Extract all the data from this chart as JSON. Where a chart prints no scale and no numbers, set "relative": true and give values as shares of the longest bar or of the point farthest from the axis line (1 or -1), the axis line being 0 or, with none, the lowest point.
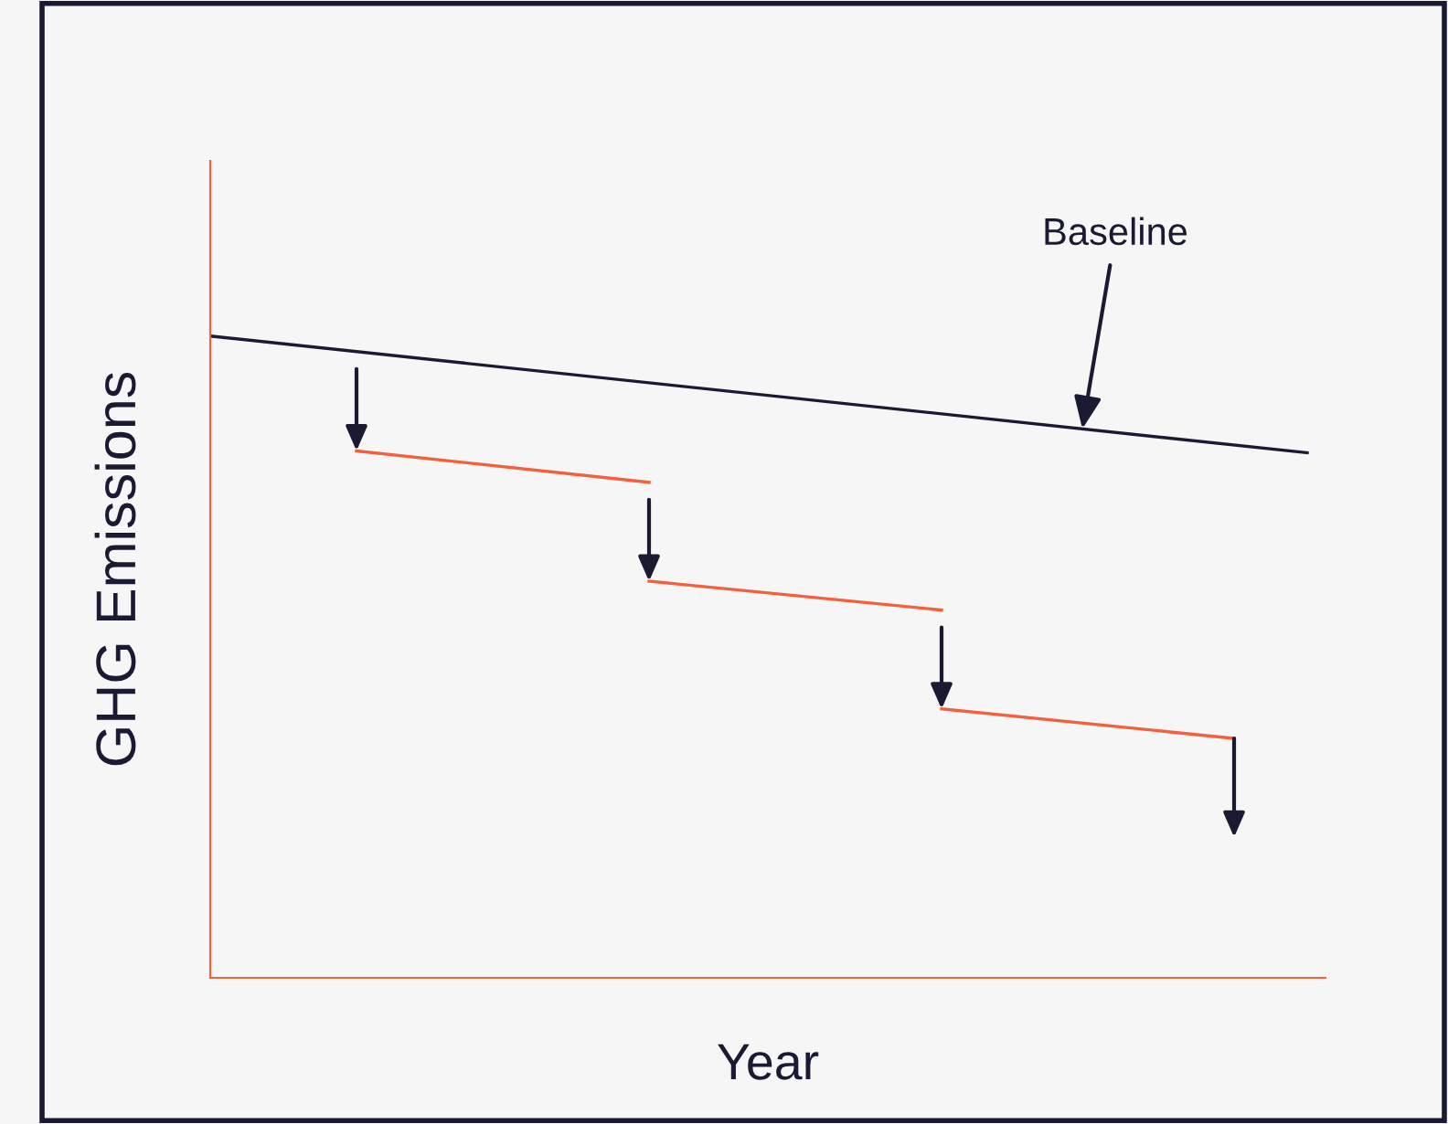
{
  "chart_data": {
    "type": "line",
    "relative": true,
    "xlabel": "Year",
    "ylabel": "GHG Emissions",
    "categories": [
      null,
      null,
      null,
      null,
      null,
      null,
      null,
      null,
      null,
      null,
      null,
      null,
      null,
      null,
      null,
      null,
      null,
      null,
      null,
      null,
      null,
      null,
      null,
      null,
      null,
      null,
      null,
      null,
      null,
      null,
      null
    ],
    "series": [
      {
        "color": "#1a1a33",
        "values": [
          1.0,
          null,
          null,
          null,
          null,
          null,
          null,
          null,
          null,
          null,
          null,
          null,
          null,
          null,
          null,
          null,
          null,
          null,
          null,
          null,
          null,
          null,
          null,
          null,
          null,
          null,
          null,
          null,
          null,
          null,
          0.818
        ]
      },
      {
        "color": "#f4603c",
        "values": [
          null,
          null,
          null,
          null,
          0.821,
          null,
          null,
          null,
          null,
          null,
          null,
          null,
          0.772,
          null,
          null,
          null,
          null,
          null,
          null,
          null,
          null,
          null,
          null,
          null,
          null,
          null,
          null,
          null,
          null,
          null,
          null
        ]
      },
      {
        "color": "#f4603c",
        "values": [
          null,
          null,
          null,
          null,
          null,
          null,
          null,
          null,
          null,
          null,
          null,
          null,
          0.618,
          null,
          null,
          null,
          null,
          null,
          null,
          null,
          0.573,
          null,
          null,
          null,
          null,
          null,
          null,
          null,
          null,
          null,
          null
        ]
      },
      {
        "color": "#f4603c",
        "values": [
          null,
          null,
          null,
          null,
          null,
          null,
          null,
          null,
          null,
          null,
          null,
          null,
          null,
          null,
          null,
          null,
          null,
          null,
          null,
          null,
          0.419,
          null,
          null,
          null,
          null,
          null,
          null,
          null,
          0.373,
          null,
          null
        ]
      }
    ],
    "annotations": [
      "Baseline"
    ]
  }
}
